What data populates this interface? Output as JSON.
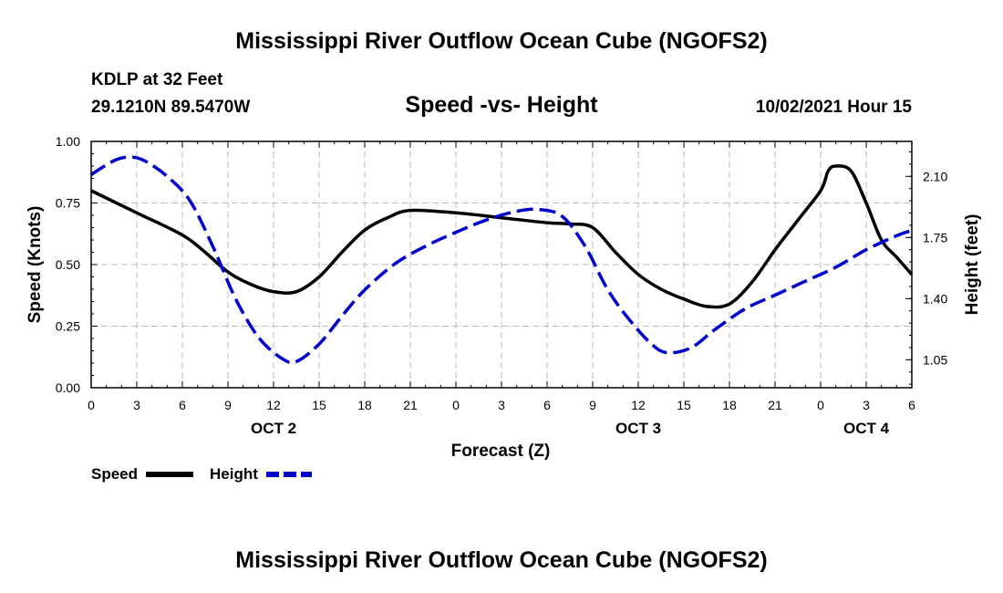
{
  "header": {
    "title": "Mississippi River Outflow Ocean Cube (NGOFS2)",
    "station": "KDLP at 32 Feet",
    "coords": "29.1210N  89.5470W",
    "subtitle": "Speed -vs- Height",
    "datetime": "10/02/2021 Hour 15"
  },
  "footer": {
    "title": "Mississippi River Outflow Ocean Cube (NGOFS2)"
  },
  "chart_data": {
    "type": "line",
    "title": "Speed -vs- Height",
    "xlabel": "Forecast (Z)",
    "ylabel": "Speed (Knots)",
    "y2label": "Height (feet)",
    "x_range_hours": [
      0,
      54
    ],
    "x_ticks": [
      {
        "h": 0,
        "label": "0"
      },
      {
        "h": 3,
        "label": "3"
      },
      {
        "h": 6,
        "label": "6"
      },
      {
        "h": 9,
        "label": "9"
      },
      {
        "h": 12,
        "label": "12"
      },
      {
        "h": 15,
        "label": "15"
      },
      {
        "h": 18,
        "label": "18"
      },
      {
        "h": 21,
        "label": "21"
      },
      {
        "h": 24,
        "label": "0"
      },
      {
        "h": 27,
        "label": "3"
      },
      {
        "h": 30,
        "label": "6"
      },
      {
        "h": 33,
        "label": "9"
      },
      {
        "h": 36,
        "label": "12"
      },
      {
        "h": 39,
        "label": "15"
      },
      {
        "h": 42,
        "label": "18"
      },
      {
        "h": 45,
        "label": "21"
      },
      {
        "h": 48,
        "label": "0"
      },
      {
        "h": 51,
        "label": "3"
      },
      {
        "h": 54,
        "label": "6"
      }
    ],
    "date_labels": [
      {
        "h": 12,
        "label": "OCT 2"
      },
      {
        "h": 36,
        "label": "OCT 3"
      },
      {
        "h": 51,
        "label": "OCT 4"
      }
    ],
    "ylim": [
      0,
      1.0
    ],
    "y_ticks": [
      "0.00",
      "0.25",
      "0.50",
      "0.75",
      "1.00"
    ],
    "y2lim": [
      0.89,
      2.3
    ],
    "y2_ticks": [
      "1.05",
      "1.40",
      "1.75",
      "2.10"
    ],
    "series": [
      {
        "name": "Speed",
        "axis": "left",
        "color": "#000000",
        "style": "solid",
        "x": [
          0,
          3,
          6,
          7.5,
          9,
          10.5,
          12,
          13.5,
          15,
          16.5,
          18,
          19.5,
          21,
          24,
          27,
          30,
          31.5,
          33,
          34.5,
          36,
          37.5,
          39,
          40.5,
          42,
          43.5,
          45,
          46.5,
          48,
          48.5,
          49,
          50,
          51,
          52,
          53,
          54
        ],
        "y": [
          0.8,
          0.71,
          0.62,
          0.55,
          0.47,
          0.42,
          0.39,
          0.39,
          0.45,
          0.55,
          0.64,
          0.69,
          0.72,
          0.71,
          0.69,
          0.67,
          0.665,
          0.65,
          0.55,
          0.46,
          0.4,
          0.36,
          0.33,
          0.34,
          0.43,
          0.56,
          0.68,
          0.8,
          0.88,
          0.9,
          0.88,
          0.75,
          0.6,
          0.53,
          0.46
        ]
      },
      {
        "name": "Height",
        "axis": "right",
        "color": "#0000cc",
        "style": "dashed",
        "x": [
          0,
          1.5,
          2.5,
          3.5,
          5,
          6.5,
          8,
          9.5,
          11,
          12.5,
          13.5,
          15,
          16.5,
          18,
          20,
          22,
          24,
          26,
          28,
          29.5,
          31,
          32.5,
          34,
          35.5,
          37,
          38,
          39.5,
          41,
          43,
          45,
          47,
          49,
          51,
          53,
          54
        ],
        "y": [
          2.11,
          2.19,
          2.21,
          2.19,
          2.1,
          1.96,
          1.7,
          1.4,
          1.18,
          1.06,
          1.04,
          1.14,
          1.3,
          1.45,
          1.6,
          1.7,
          1.78,
          1.85,
          1.9,
          1.91,
          1.87,
          1.7,
          1.45,
          1.27,
          1.13,
          1.09,
          1.12,
          1.22,
          1.34,
          1.42,
          1.5,
          1.58,
          1.68,
          1.76,
          1.79
        ]
      }
    ]
  }
}
